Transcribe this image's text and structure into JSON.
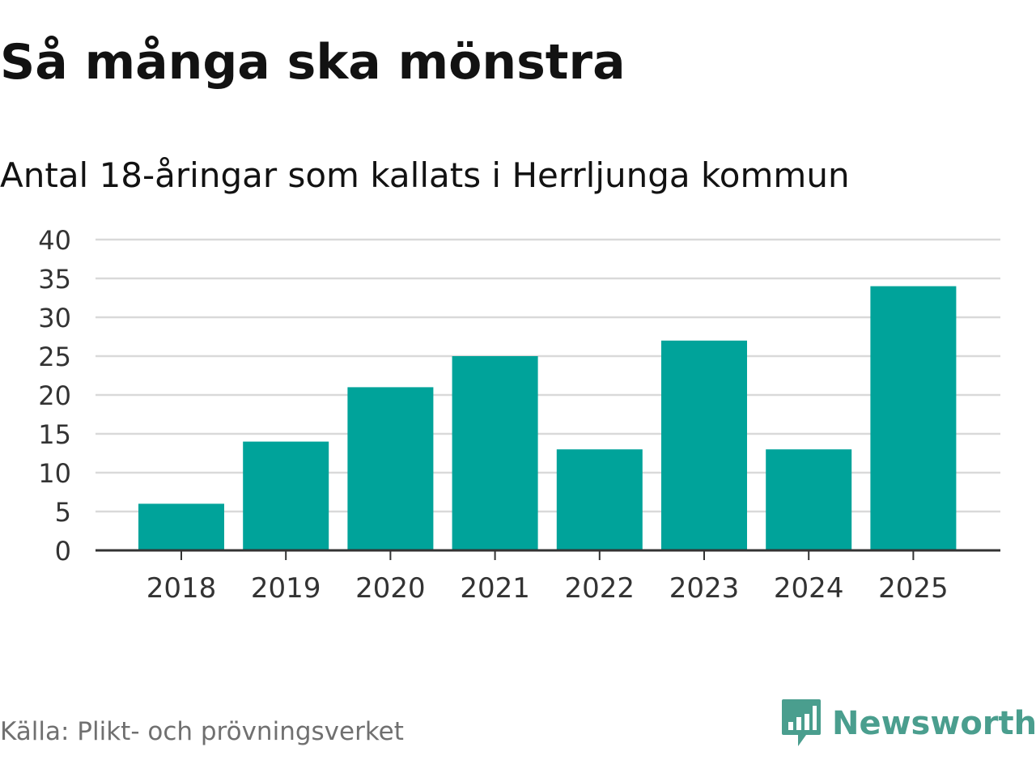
{
  "header": {
    "title": "Så många ska mönstra",
    "subtitle": "Antal 18-åringar som kallats i Herrljunga kommun"
  },
  "footer": {
    "source": "Källa: Plikt- och prövningsverket",
    "brand": "Newsworthy"
  },
  "colors": {
    "bar": "#00a39a",
    "grid": "#d9d9d9",
    "axis": "#333333",
    "brand": "#4a9e8e"
  },
  "chart_data": {
    "type": "bar",
    "title": "Så många ska mönstra",
    "subtitle": "Antal 18-åringar som kallats i Herrljunga kommun",
    "categories": [
      "2018",
      "2019",
      "2020",
      "2021",
      "2022",
      "2023",
      "2024",
      "2025"
    ],
    "values": [
      6,
      14,
      21,
      25,
      13,
      27,
      13,
      34
    ],
    "yticks": [
      0,
      5,
      10,
      15,
      20,
      25,
      30,
      35,
      40
    ],
    "ylim": [
      0,
      40
    ],
    "xlabel": "",
    "ylabel": "",
    "grid": true,
    "legend": "none"
  }
}
